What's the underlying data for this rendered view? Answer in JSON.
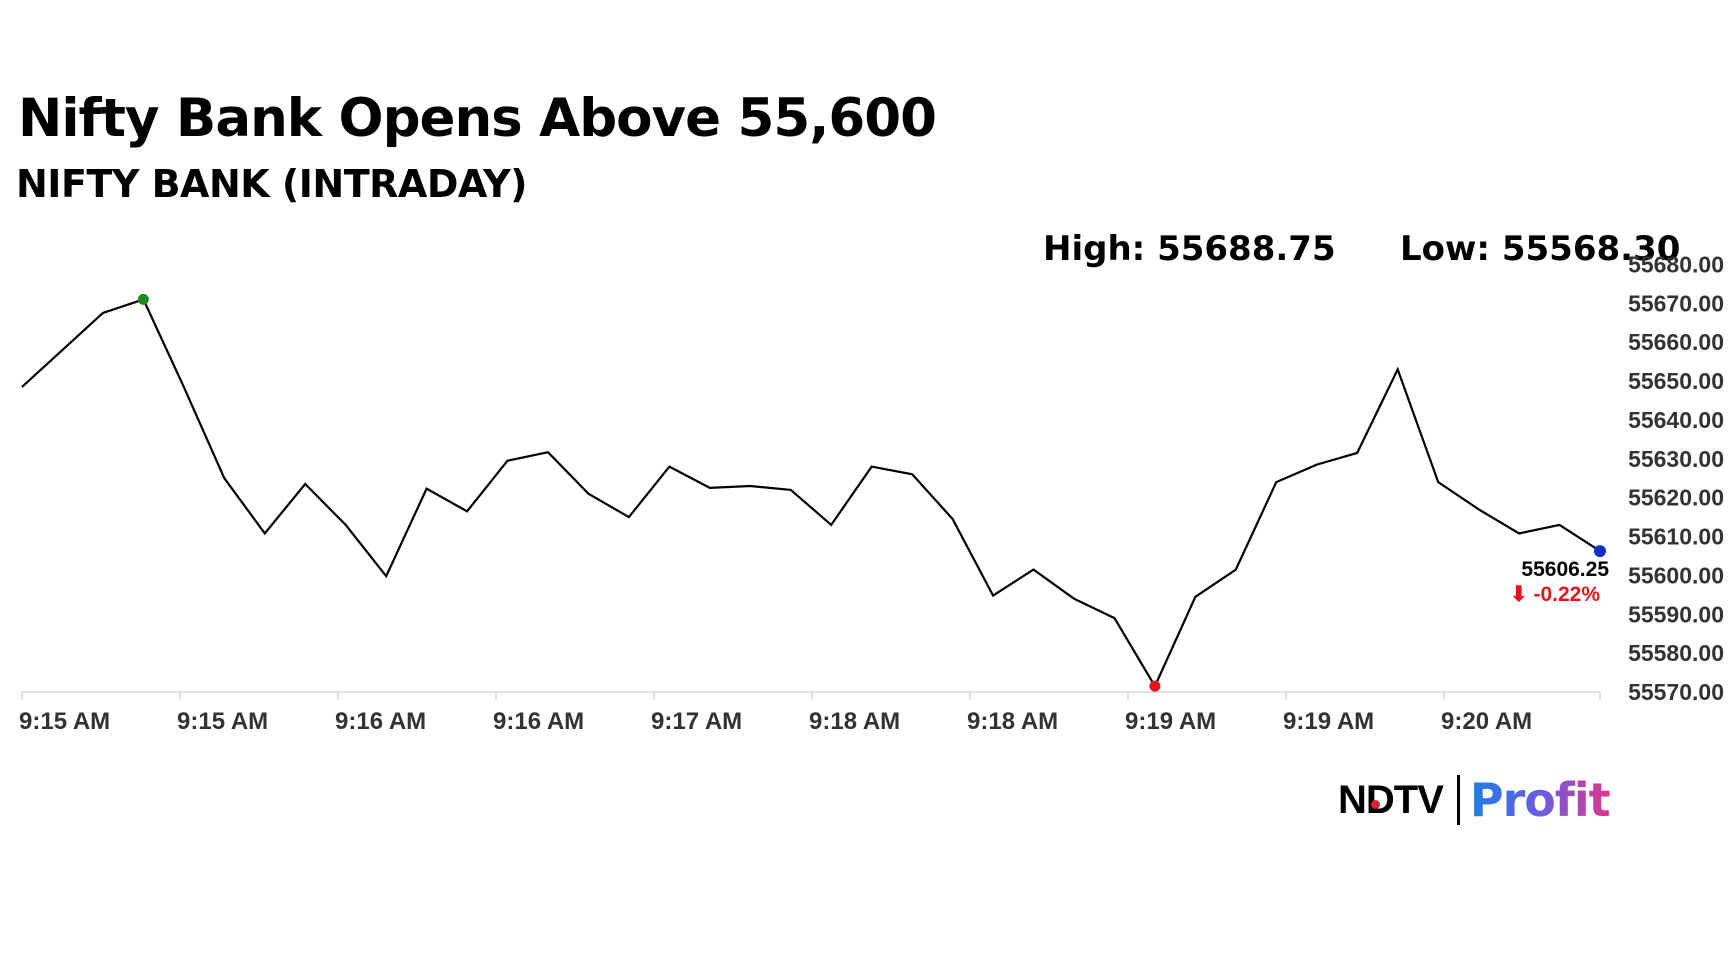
{
  "headline": "Nifty Bank Opens Above 55,600",
  "subtitle": "NIFTY BANK (INTRADAY)",
  "stats": {
    "high": "High: 55688.75",
    "low": "Low: 55568.30"
  },
  "last": {
    "value": "55606.25",
    "change": "-0.22%",
    "arrow": "⬇"
  },
  "logo": {
    "ndtv": "NDTV",
    "profit": "Profit"
  },
  "colors": {
    "line": "#000000",
    "high_marker": "#1a8a1a",
    "low_marker": "#e8141b",
    "last_marker": "#1030c0",
    "change": "#e8141b",
    "axis": "#d9d9d9"
  },
  "chart_data": {
    "type": "line",
    "title": "NIFTY BANK (INTRADAY)",
    "x_tick_labels": [
      "9:15 AM",
      "9:15 AM",
      "9:16 AM",
      "9:16 AM",
      "9:17 AM",
      "9:18 AM",
      "9:18 AM",
      "9:19 AM",
      "9:19 AM",
      "9:20 AM"
    ],
    "y_ticks": [
      55570,
      55580,
      55590,
      55600,
      55610,
      55620,
      55630,
      55640,
      55650,
      55660,
      55670,
      55680
    ],
    "y_tick_labels": [
      "55570.00",
      "55580.00",
      "55590.00",
      "55600.00",
      "55610.00",
      "55620.00",
      "55630.00",
      "55640.00",
      "55650.00",
      "55660.00",
      "55670.00",
      "55680.00"
    ],
    "ylim": [
      55570,
      55680
    ],
    "series": [
      {
        "values": [
          55648.5,
          55658.0,
          55667.5,
          55671.0,
          55648.5,
          55625.0,
          55610.8,
          55623.5,
          55613.0,
          55599.8,
          55622.3,
          55616.5,
          55629.5,
          55631.7,
          55621.0,
          55615.0,
          55628.0,
          55622.5,
          55623.0,
          55622.0,
          55613.0,
          55628.0,
          55626.0,
          55614.5,
          55594.8,
          55601.5,
          55594.0,
          55589.0,
          55571.5,
          55594.5,
          55601.5,
          55624.0,
          55628.5,
          55631.5,
          55653.0,
          55624.0,
          55617.0,
          55610.8,
          55613.0,
          55606.25
        ]
      }
    ],
    "high_point_index": 3,
    "low_point_index": 28,
    "grid": false
  }
}
